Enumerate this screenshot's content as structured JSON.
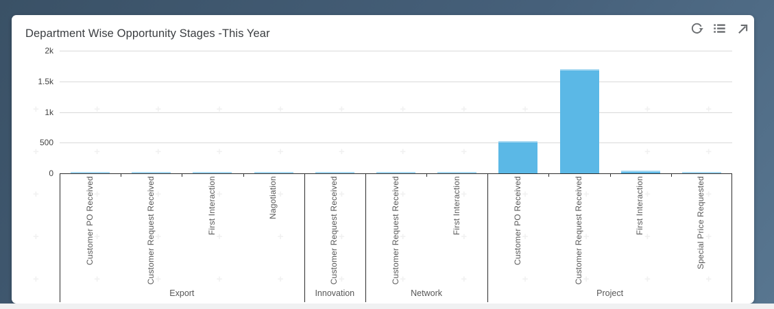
{
  "colors": {
    "background_top": "#3a5166",
    "background_bottom": "#587690",
    "card_background": "#ffffff",
    "bar_fill": "#5bb8e6",
    "gridline": "#d9d9d9",
    "axis_line": "#2b2b2b",
    "icon_gray": "#6a6d70",
    "bottom_strip": "#f0f1f2"
  },
  "card": {
    "title": "Department Wise Opportunity Stages -This Year",
    "toolbar": {
      "icons": [
        {
          "name": "refresh-icon"
        },
        {
          "name": "list-view-icon"
        },
        {
          "name": "expand-icon"
        }
      ]
    }
  },
  "chart_data": {
    "type": "bar",
    "title": "Department Wise Opportunity Stages -This Year",
    "xlabel": "",
    "ylabel": "",
    "ylim": [
      0,
      2000
    ],
    "grid": true,
    "legend": false,
    "y_ticks": [
      {
        "label": "2k",
        "value": 2000
      },
      {
        "label": "1.5k",
        "value": 1500
      },
      {
        "label": "1k",
        "value": 1000
      },
      {
        "label": "500",
        "value": 500
      },
      {
        "label": "0",
        "value": 0
      }
    ],
    "bar_color": "#5bb8e6",
    "groups": [
      {
        "label": "Export",
        "bars": [
          {
            "label": "Customer PO Received",
            "value": 25
          },
          {
            "label": "Customer Request Received",
            "value": 25
          },
          {
            "label": "First Interaction",
            "value": 15
          },
          {
            "label": "Nagotiation",
            "value": 20
          }
        ]
      },
      {
        "label": "Innovation",
        "bars": [
          {
            "label": "Customer Request Received",
            "value": 20
          }
        ]
      },
      {
        "label": "Network",
        "bars": [
          {
            "label": "Customer Request Received",
            "value": 25
          },
          {
            "label": "First Interaction",
            "value": 20
          }
        ]
      },
      {
        "label": "Project",
        "bars": [
          {
            "label": "Customer PO Received",
            "value": 520
          },
          {
            "label": "Customer Request Received",
            "value": 1700
          },
          {
            "label": "First Interaction",
            "value": 45
          },
          {
            "label": "Special Price Requested",
            "value": 20
          }
        ]
      }
    ]
  }
}
